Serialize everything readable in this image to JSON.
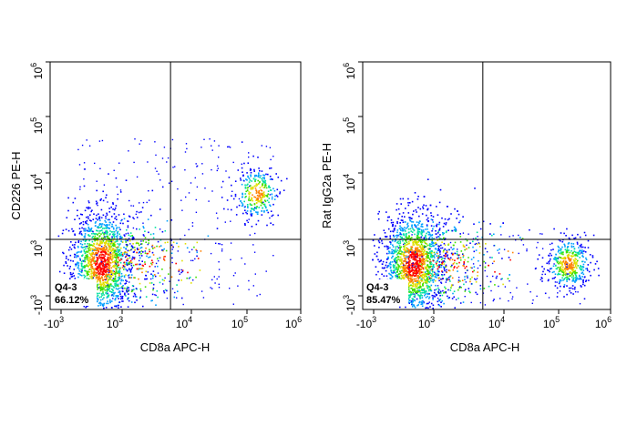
{
  "chart_data": [
    {
      "type": "scatter",
      "subtype": "flow-cytometry-density-dot-plot",
      "xlabel": "CD8a APC-H",
      "ylabel": "CD226 PE-H",
      "x_scale": "biexponential",
      "y_scale": "biexponential",
      "xlim": [
        "-10^3",
        "10^6"
      ],
      "ylim": [
        "-10^3",
        "10^6"
      ],
      "x_ticks": [
        {
          "base": "-10",
          "exp": "3"
        },
        {
          "base": "10",
          "exp": "3"
        },
        {
          "base": "10",
          "exp": "4"
        },
        {
          "base": "10",
          "exp": "5"
        },
        {
          "base": "10",
          "exp": "6"
        }
      ],
      "y_ticks": [
        {
          "base": "-10",
          "exp": "3"
        },
        {
          "base": "10",
          "exp": "3"
        },
        {
          "base": "10",
          "exp": "4"
        },
        {
          "base": "10",
          "exp": "5"
        },
        {
          "base": "10",
          "exp": "6"
        }
      ],
      "quadrant_gate": {
        "x": 5000,
        "y": 1000
      },
      "gate": {
        "name": "Q4-3",
        "percent": "66.12%"
      },
      "populations": [
        {
          "x_center": 300,
          "y_center": 200,
          "share": 0.7,
          "color": "red"
        },
        {
          "x_center": 150000,
          "y_center": 5000,
          "share": 0.12,
          "color": "orange"
        }
      ],
      "grid": false,
      "legend": "none"
    },
    {
      "type": "scatter",
      "subtype": "flow-cytometry-density-dot-plot",
      "xlabel": "CD8a APC-H",
      "ylabel": "Rat IgG2a PE-H",
      "x_scale": "biexponential",
      "y_scale": "biexponential",
      "xlim": [
        "-10^3",
        "10^6"
      ],
      "ylim": [
        "-10^3",
        "10^6"
      ],
      "x_ticks": [
        {
          "base": "-10",
          "exp": "3"
        },
        {
          "base": "10",
          "exp": "3"
        },
        {
          "base": "10",
          "exp": "4"
        },
        {
          "base": "10",
          "exp": "5"
        },
        {
          "base": "10",
          "exp": "6"
        }
      ],
      "y_ticks": [
        {
          "base": "-10",
          "exp": "3"
        },
        {
          "base": "10",
          "exp": "3"
        },
        {
          "base": "10",
          "exp": "4"
        },
        {
          "base": "10",
          "exp": "5"
        },
        {
          "base": "10",
          "exp": "6"
        }
      ],
      "quadrant_gate": {
        "x": 5000,
        "y": 1000
      },
      "gate": {
        "name": "Q4-3",
        "percent": "85.47%"
      },
      "populations": [
        {
          "x_center": 300,
          "y_center": 150,
          "share": 0.78,
          "color": "red"
        },
        {
          "x_center": 150000,
          "y_center": 150,
          "share": 0.17,
          "color": "green"
        }
      ],
      "grid": false,
      "legend": "none"
    }
  ],
  "colors": {
    "density_scale": [
      "#0000ff",
      "#00a0ff",
      "#00e0a0",
      "#40e000",
      "#e0e000",
      "#ff8000",
      "#ff0000"
    ],
    "axis": "#000000",
    "gate_line": "#000000",
    "background": "#ffffff"
  }
}
